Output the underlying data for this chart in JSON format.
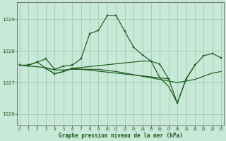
{
  "title": "Graphe pression niveau de la mer (hPa)",
  "bg_color": "#c8e8d8",
  "plot_bg_color": "#c8e8d8",
  "grid_color": "#96c8aa",
  "line_color": "#1a5c1a",
  "xlim": [
    -0.3,
    23.3
  ],
  "ylim": [
    1025.65,
    1029.55
  ],
  "yticks": [
    1026,
    1027,
    1028,
    1029
  ],
  "xticks": [
    0,
    1,
    2,
    3,
    4,
    5,
    6,
    7,
    8,
    9,
    10,
    11,
    12,
    13,
    14,
    15,
    16,
    17,
    18,
    19,
    20,
    21,
    22,
    23
  ],
  "series_A_x": [
    0,
    1,
    2,
    3,
    4,
    5,
    6,
    7,
    8,
    9,
    10,
    11,
    12,
    13,
    14,
    15,
    16,
    17
  ],
  "series_A_y": [
    1027.55,
    1027.55,
    1027.65,
    1027.75,
    1027.42,
    1027.52,
    1027.55,
    1027.75,
    1028.55,
    1028.65,
    1029.12,
    1029.12,
    1028.62,
    1028.12,
    1027.88,
    1027.68,
    1027.58,
    1027.12
  ],
  "series_B_x": [
    0,
    1,
    2,
    3,
    4,
    5,
    6,
    17,
    18,
    19,
    20,
    21,
    22,
    23
  ],
  "series_B_y": [
    1027.55,
    1027.55,
    1027.65,
    1027.45,
    1027.28,
    1027.35,
    1027.45,
    1027.12,
    1026.35,
    1027.12,
    1027.55,
    1027.85,
    1027.92,
    1027.78
  ],
  "series_C_x": [
    0,
    1,
    2,
    3,
    4,
    5,
    6,
    7,
    8,
    9,
    10,
    11,
    12,
    13,
    14,
    15,
    16,
    17,
    18,
    19,
    20,
    21,
    22,
    23
  ],
  "series_C_y": [
    1027.55,
    1027.52,
    1027.5,
    1027.47,
    1027.4,
    1027.4,
    1027.42,
    1027.42,
    1027.42,
    1027.42,
    1027.38,
    1027.35,
    1027.3,
    1027.25,
    1027.2,
    1027.15,
    1027.1,
    1027.05,
    1027.0,
    1027.05,
    1027.1,
    1027.2,
    1027.3,
    1027.35
  ],
  "series_D_x": [
    3,
    4,
    5,
    6,
    14,
    15,
    16,
    17,
    18,
    19,
    20
  ],
  "series_D_y": [
    1027.45,
    1027.28,
    1027.35,
    1027.45,
    1027.68,
    1027.68,
    1027.15,
    1026.88,
    1026.35,
    1027.12,
    1027.55
  ]
}
